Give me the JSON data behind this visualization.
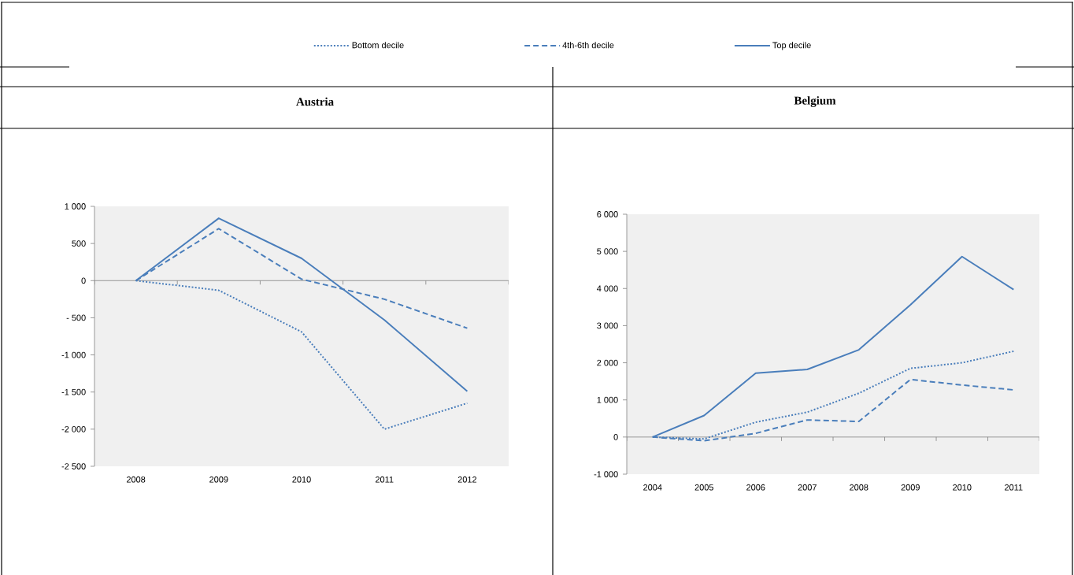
{
  "chart_data": [
    {
      "type": "line",
      "title": "Austria",
      "categories": [
        "2008",
        "2009",
        "2010",
        "2011",
        "2012"
      ],
      "series": [
        {
          "name": "Bottom decile",
          "color": "#4a7ebb",
          "line_style": "dotted",
          "values": [
            0,
            -130,
            -690,
            -2000,
            -1650
          ]
        },
        {
          "name": "4th-6th decile",
          "color": "#4a7ebb",
          "line_style": "dashed",
          "values": [
            0,
            700,
            20,
            -250,
            -640
          ]
        },
        {
          "name": "Top decile",
          "color": "#4a7ebb",
          "line_style": "solid",
          "values": [
            0,
            840,
            300,
            -530,
            -1490
          ]
        }
      ],
      "ylim": [
        -2500,
        1000
      ],
      "yticks": [
        {
          "value": -2500,
          "label": "-2 500"
        },
        {
          "value": -2000,
          "label": "-2 000"
        },
        {
          "value": -1500,
          "label": "-1 500"
        },
        {
          "value": -1000,
          "label": "-1 000"
        },
        {
          "value": -500,
          "label": "- 500"
        },
        0,
        500,
        {
          "value": 1000,
          "label": "1 000"
        }
      ],
      "legend": "top"
    },
    {
      "type": "line",
      "title": "Belgium",
      "categories": [
        "2004",
        "2005",
        "2006",
        "2007",
        "2008",
        "2009",
        "2010",
        "2011"
      ],
      "series": [
        {
          "color": "#4a7ebb",
          "line_style": "dotted",
          "values": [
            0,
            -50,
            400,
            670,
            1180,
            1850,
            2000,
            2310
          ]
        },
        {
          "color": "#4a7ebb",
          "line_style": "dashed",
          "values": [
            0,
            -100,
            100,
            460,
            420,
            1550,
            1400,
            1270
          ]
        },
        {
          "color": "#4a7ebb",
          "line_style": "solid",
          "values": [
            0,
            580,
            1720,
            1820,
            2350,
            3560,
            4860,
            3970
          ]
        }
      ],
      "ylim": [
        -1000,
        6000
      ],
      "yticks": [
        {
          "value": -1000,
          "label": "-1 000"
        },
        0,
        {
          "value": 1000,
          "label": "1 000"
        },
        {
          "value": 2000,
          "label": "2 000"
        },
        {
          "value": 3000,
          "label": "3 000"
        },
        {
          "value": 4000,
          "label": "4 000"
        },
        {
          "value": 5000,
          "label": "5 000"
        },
        {
          "value": 6000,
          "label": "6 000"
        }
      ]
    }
  ]
}
